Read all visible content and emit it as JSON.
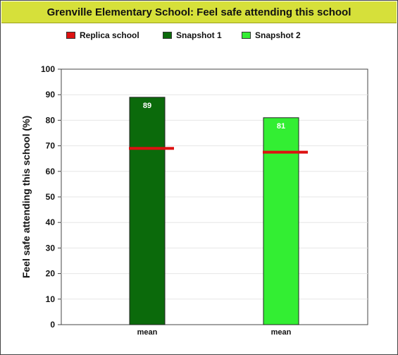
{
  "chart_data": {
    "type": "bar",
    "title": "Grenville Elementary School: Feel safe attending this school",
    "ylabel": "Feel safe attending this school (%)",
    "xlabel": "",
    "ylim": [
      0,
      100
    ],
    "yticks": [
      0,
      10,
      20,
      30,
      40,
      50,
      60,
      70,
      80,
      90,
      100
    ],
    "grid": true,
    "legend_position": "top",
    "legend": [
      {
        "label": "Replica school",
        "color": "#dd1111"
      },
      {
        "label": "Snapshot 1",
        "color": "#0b6a0b"
      },
      {
        "label": "Snapshot 2",
        "color": "#33ee33"
      }
    ],
    "bars": [
      {
        "category": "mean",
        "series": "Snapshot 1",
        "value": 89,
        "value_label": "89",
        "color": "#0b6a0b",
        "replica_value": 69
      },
      {
        "category": "mean",
        "series": "Snapshot 2",
        "value": 81,
        "value_label": "81",
        "color": "#33ee33",
        "replica_value": 67.5
      }
    ],
    "replica_color": "#dd1111"
  }
}
